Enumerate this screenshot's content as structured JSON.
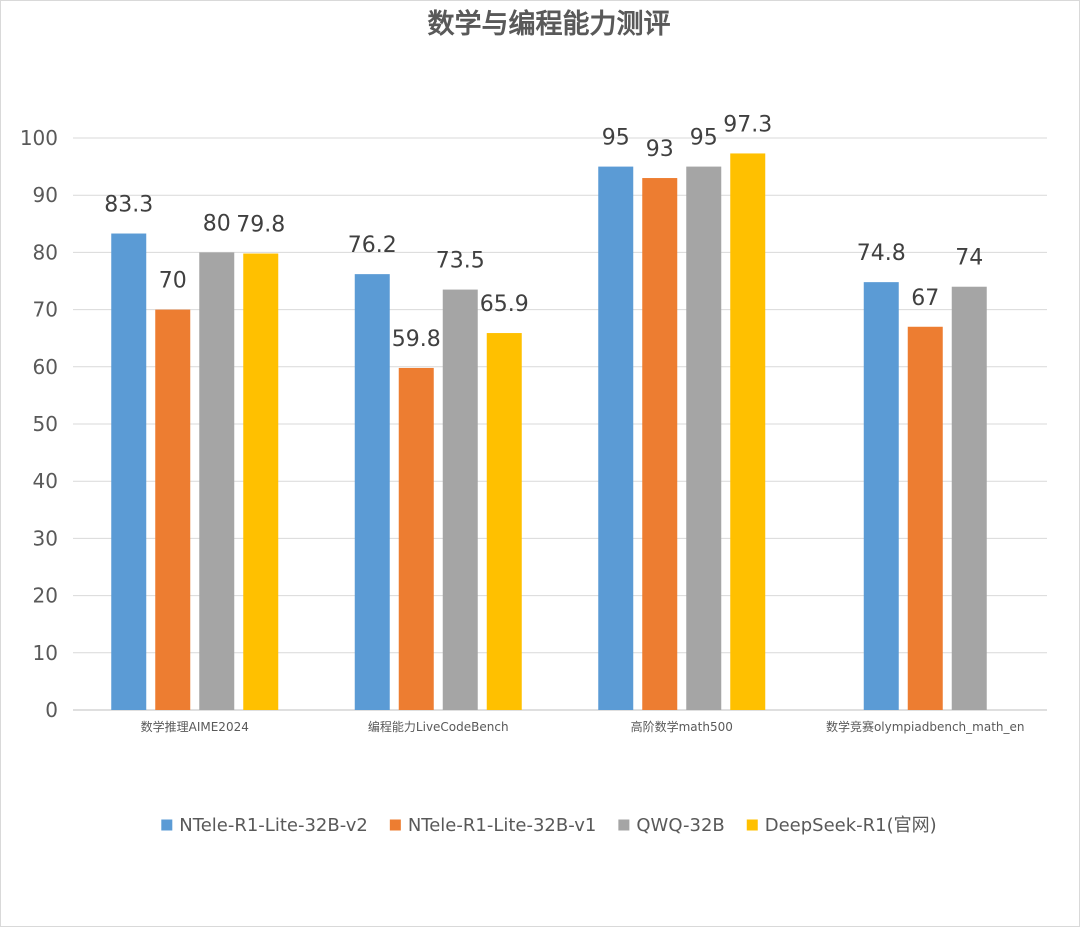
{
  "chart_data": {
    "type": "bar",
    "title": "数学与编程能力测评",
    "categories": [
      "数学推理AIME2024",
      "编程能力LiveCodeBench",
      "高阶数学math500",
      "数学竞赛olympiadbench_math_en"
    ],
    "series": [
      {
        "name": "NTele-R1-Lite-32B-v2",
        "color": "#5b9bd5",
        "values": [
          83.3,
          76.2,
          95,
          74.8
        ]
      },
      {
        "name": "NTele-R1-Lite-32B-v1",
        "color": "#ed7d31",
        "values": [
          70,
          59.8,
          93,
          67
        ]
      },
      {
        "name": "QWQ-32B",
        "color": "#a5a5a5",
        "values": [
          80,
          73.5,
          95,
          74
        ]
      },
      {
        "name": "DeepSeek-R1(官网)",
        "color": "#ffc000",
        "values": [
          79.8,
          65.9,
          97.3,
          null
        ]
      }
    ],
    "ylim": [
      0,
      100
    ],
    "yticks": [
      0,
      10,
      20,
      30,
      40,
      50,
      60,
      70,
      80,
      90,
      100
    ],
    "grid": true,
    "legend_position": "bottom"
  }
}
